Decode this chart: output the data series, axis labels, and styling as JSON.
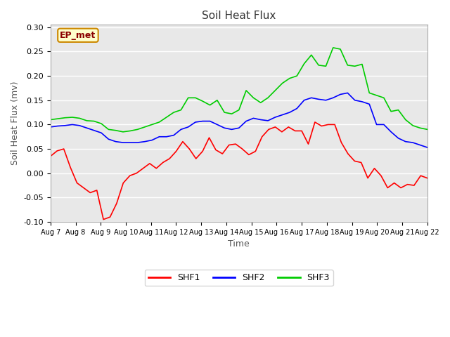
{
  "title": "Soil Heat Flux",
  "xlabel": "Time",
  "ylabel": "Soil Heat Flux (mv)",
  "ylim": [
    -0.1,
    0.305
  ],
  "yticks": [
    -0.1,
    -0.05,
    0.0,
    0.05,
    0.1,
    0.15,
    0.2,
    0.25,
    0.3
  ],
  "xtick_labels": [
    "Aug 7",
    "Aug 8",
    "Aug 9",
    "Aug 10",
    "Aug 11",
    "Aug 12",
    "Aug 13",
    "Aug 14",
    "Aug 15",
    "Aug 16",
    "Aug 17",
    "Aug 18",
    "Aug 19",
    "Aug 20",
    "Aug 21",
    "Aug 22"
  ],
  "fig_bg_color": "#ffffff",
  "plot_bg_color": "#e8e8e8",
  "grid_color": "#ffffff",
  "annotation_text": "EP_met",
  "annotation_box_color": "#ffffcc",
  "annotation_border_color": "#cc8800",
  "annotation_text_color": "#8b0000",
  "shf1_color": "#ff0000",
  "shf2_color": "#0000ff",
  "shf3_color": "#00cc00",
  "shf1": [
    0.035,
    0.046,
    0.05,
    0.012,
    -0.02,
    -0.03,
    -0.04,
    -0.035,
    -0.095,
    -0.09,
    -0.062,
    -0.02,
    -0.005,
    0.0,
    0.01,
    0.02,
    0.01,
    0.022,
    0.03,
    0.045,
    0.065,
    0.05,
    0.03,
    0.045,
    0.073,
    0.048,
    0.04,
    0.058,
    0.06,
    0.05,
    0.038,
    0.045,
    0.075,
    0.09,
    0.095,
    0.085,
    0.095,
    0.087,
    0.087,
    0.06,
    0.105,
    0.097,
    0.1,
    0.1,
    0.063,
    0.04,
    0.025,
    0.022,
    -0.01,
    0.01,
    -0.005,
    -0.03,
    -0.02,
    -0.03,
    -0.023,
    -0.025,
    -0.005,
    -0.01
  ],
  "shf2": [
    0.095,
    0.097,
    0.098,
    0.1,
    0.098,
    0.093,
    0.088,
    0.083,
    0.07,
    0.065,
    0.063,
    0.063,
    0.063,
    0.065,
    0.068,
    0.075,
    0.075,
    0.078,
    0.09,
    0.095,
    0.105,
    0.107,
    0.107,
    0.1,
    0.093,
    0.09,
    0.093,
    0.107,
    0.113,
    0.11,
    0.108,
    0.115,
    0.12,
    0.125,
    0.133,
    0.15,
    0.155,
    0.152,
    0.15,
    0.155,
    0.162,
    0.165,
    0.15,
    0.147,
    0.142,
    0.1,
    0.1,
    0.085,
    0.072,
    0.065,
    0.063,
    0.058,
    0.053
  ],
  "shf3": [
    0.11,
    0.112,
    0.114,
    0.115,
    0.113,
    0.108,
    0.107,
    0.102,
    0.09,
    0.088,
    0.085,
    0.087,
    0.09,
    0.095,
    0.1,
    0.105,
    0.115,
    0.125,
    0.13,
    0.155,
    0.155,
    0.148,
    0.14,
    0.15,
    0.125,
    0.122,
    0.13,
    0.17,
    0.155,
    0.145,
    0.155,
    0.17,
    0.185,
    0.195,
    0.2,
    0.225,
    0.243,
    0.222,
    0.22,
    0.258,
    0.255,
    0.222,
    0.22,
    0.224,
    0.165,
    0.16,
    0.155,
    0.127,
    0.13,
    0.11,
    0.098,
    0.093,
    0.09
  ]
}
